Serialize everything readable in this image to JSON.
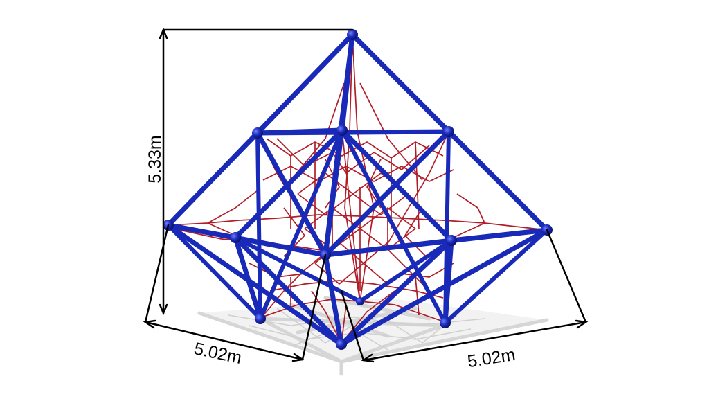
{
  "dimensions": {
    "height_label": "5.33m",
    "width_left_label": "5.02m",
    "width_right_label": "5.02m"
  },
  "colors": {
    "frame": "#1a2ab8",
    "net": "#b01d28",
    "shadow": "#d6d6d6",
    "dimension_line": "#000000"
  }
}
